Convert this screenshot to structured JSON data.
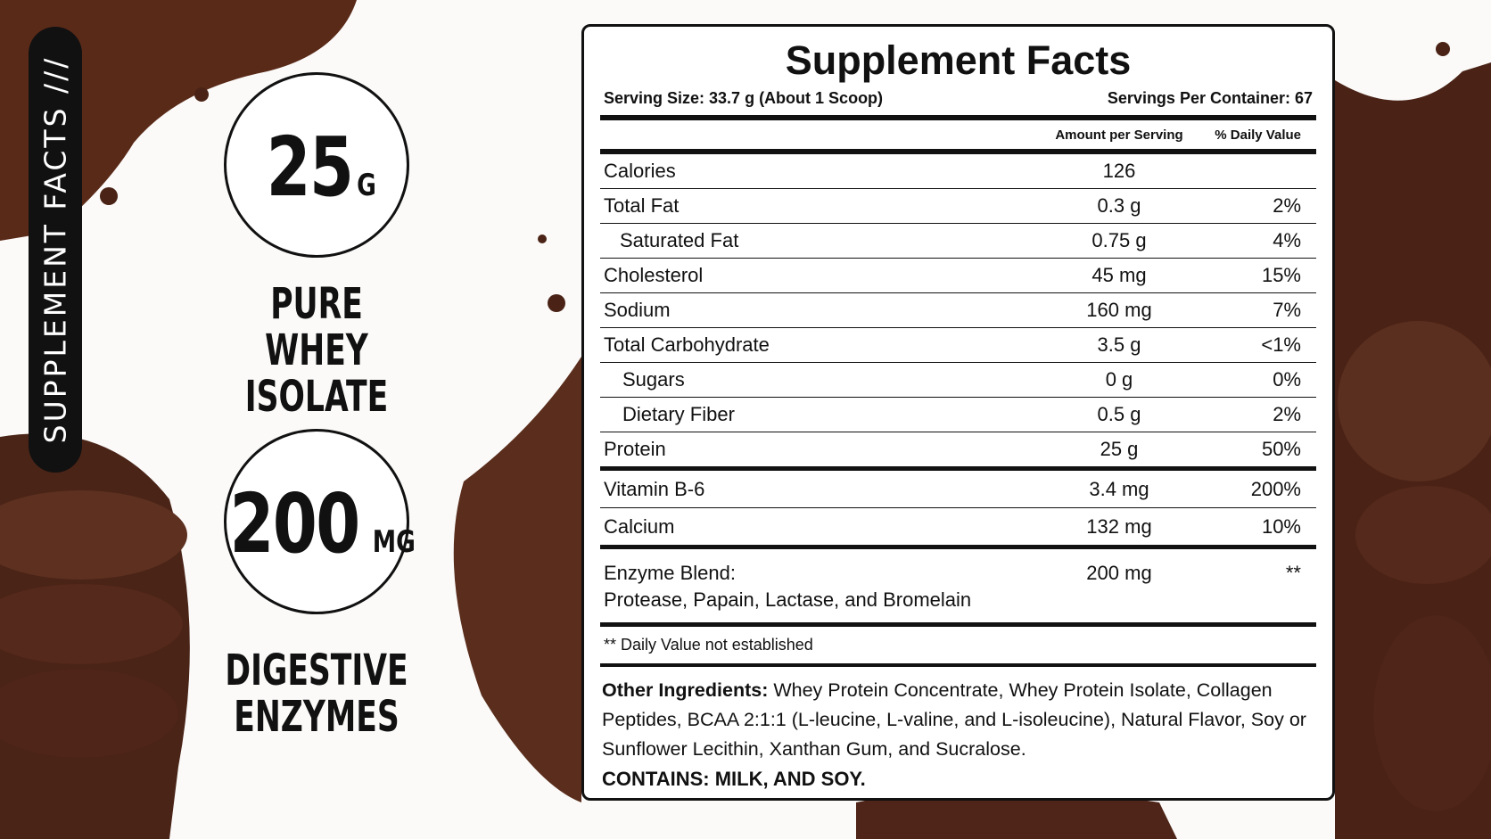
{
  "side_label": "SUPPLEMENT FACTS ///",
  "badges": [
    {
      "value": "25",
      "unit": "G",
      "caption": [
        "PURE WHEY",
        "ISOLATE"
      ]
    },
    {
      "value": "200",
      "unit": "MG",
      "caption": [
        "DIGESTIVE",
        "ENZYMES"
      ]
    }
  ],
  "facts": {
    "title": "Supplement Facts",
    "serving_size": "Serving Size: 33.7 g (About 1 Scoop)",
    "servings_per_container": "Servings Per Container: 67",
    "columns": [
      "Amount per Serving",
      "% Daily Value"
    ],
    "rows": [
      [
        "Calories",
        "126",
        ""
      ],
      [
        "Total Fat",
        "0.3 g",
        "2%"
      ],
      [
        "Saturated Fat",
        "0.75 g",
        "4%"
      ],
      [
        "Cholesterol",
        "45 mg",
        "15%"
      ],
      [
        "Sodium",
        "160 mg",
        "7%"
      ],
      [
        "Total Carbohydrate",
        "3.5 g",
        "<1%"
      ],
      [
        "Sugars",
        "0 g",
        "0%"
      ],
      [
        "Dietary Fiber",
        "0.5 g",
        "2%"
      ],
      [
        "Protein",
        "25 g",
        "50%"
      ]
    ],
    "vitamin_rows": [
      [
        "Vitamin B-6",
        "3.4 mg",
        "200%"
      ],
      [
        "Calcium",
        "132 mg",
        "10%"
      ]
    ],
    "enzyme": {
      "name": "Enzyme Blend:",
      "amount": "200 mg",
      "dv": "**",
      "detail": "Protease, Papain, Lactase, and Bromelain"
    },
    "footnote": "** Daily Value not established",
    "other_label": "Other Ingredients:",
    "other_text": "Whey Protein Concentrate, Whey Protein Isolate, Collagen Peptides, BCAA 2:1:1 (L-leucine, L-valine, and L-isoleucine), Natural Flavor, Soy or Sunflower Lecithin, Xanthan Gum, and Sucralose.",
    "contains": "CONTAINS: MILK, AND SOY."
  }
}
